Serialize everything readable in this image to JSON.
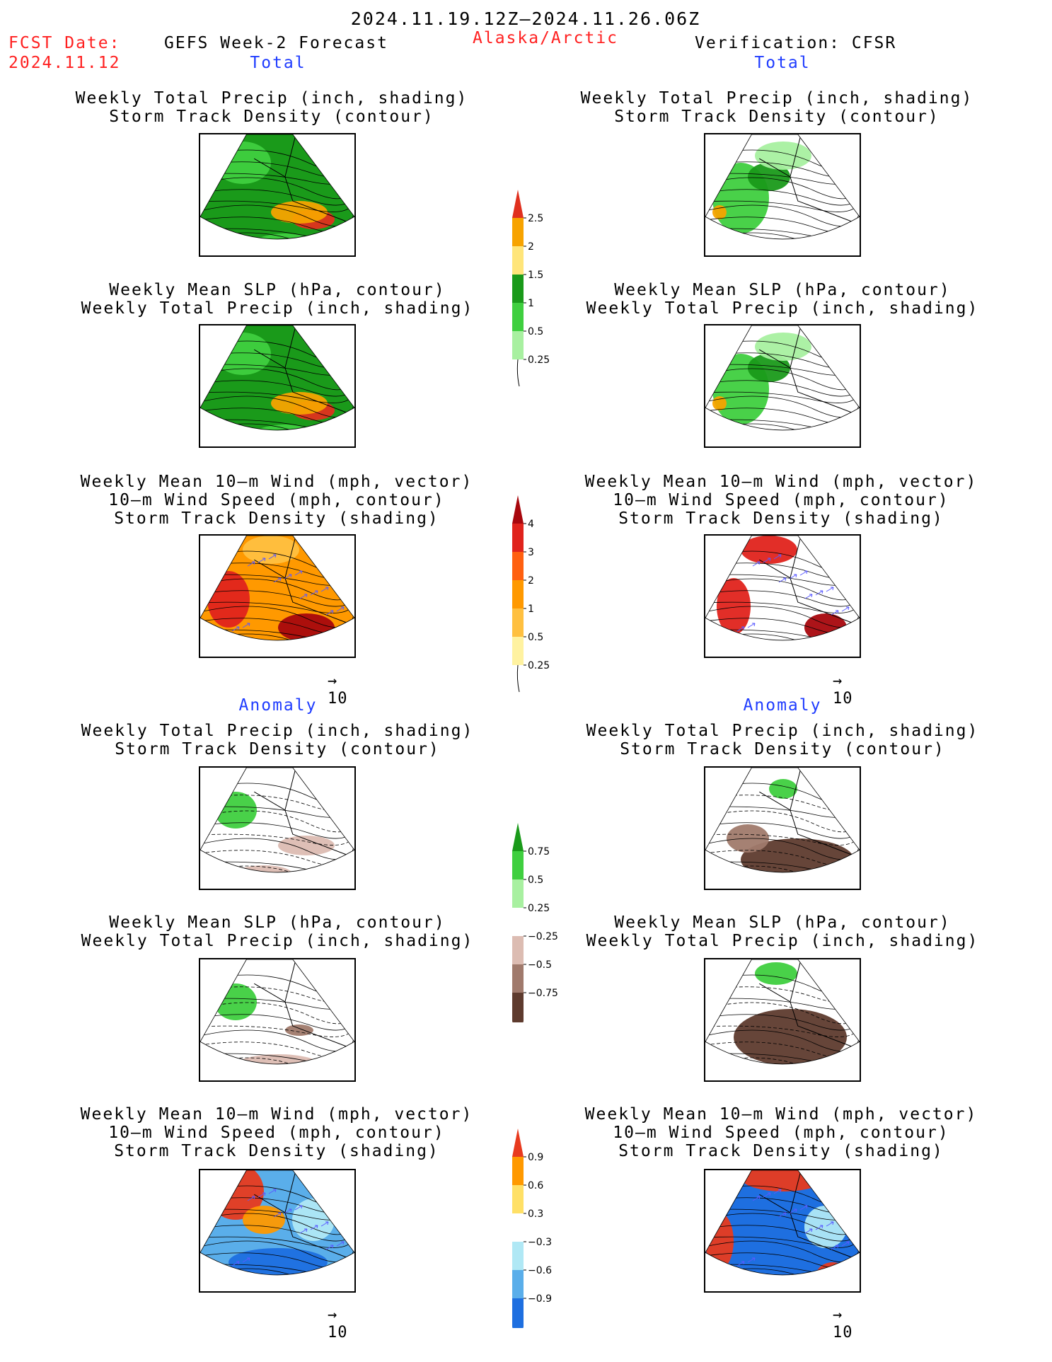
{
  "header": {
    "period": "2024.11.19.12Z—2024.11.26.06Z",
    "fcst_label": "FCST Date:",
    "fcst_date": "2024.11.12",
    "model": "GEFS Week-2 Forecast",
    "region": "Alaska/Arctic",
    "verification": "Verification: CFSR"
  },
  "sections": {
    "total_left": "Total",
    "total_right": "Total",
    "anomaly_left": "Anomaly",
    "anomaly_right": "Anomaly"
  },
  "titles": {
    "precip_track": "Weekly Total Precip (inch, shading)\nStorm Track Density (contour)",
    "slp_precip": "Weekly Mean SLP (hPa, contour)\nWeekly Total Precip (inch, shading)",
    "wind_track": "Weekly Mean 10—m Wind (mph, vector)\n10—m Wind Speed (mph, contour)\nStorm Track Density (shading)"
  },
  "reference_vector": "10",
  "chart_data": [
    {
      "type": "heatmap",
      "name": "forecast-total-precip-track",
      "colorbar": "precip"
    },
    {
      "type": "heatmap",
      "name": "verification-total-precip-track",
      "colorbar": "precip"
    },
    {
      "type": "heatmap",
      "name": "forecast-total-slp-precip",
      "colorbar": "precip"
    },
    {
      "type": "heatmap",
      "name": "verification-total-slp-precip",
      "colorbar": "precip"
    },
    {
      "type": "heatmap",
      "name": "forecast-total-wind-track",
      "colorbar": "track"
    },
    {
      "type": "heatmap",
      "name": "verification-total-wind-track",
      "colorbar": "track"
    },
    {
      "type": "heatmap",
      "name": "forecast-anomaly-precip-track",
      "colorbar": "precip_anom"
    },
    {
      "type": "heatmap",
      "name": "verification-anomaly-precip-track",
      "colorbar": "precip_anom"
    },
    {
      "type": "heatmap",
      "name": "forecast-anomaly-slp-precip",
      "colorbar": "precip_anom"
    },
    {
      "type": "heatmap",
      "name": "verification-anomaly-slp-precip",
      "colorbar": "precip_anom"
    },
    {
      "type": "heatmap",
      "name": "forecast-anomaly-wind-track",
      "colorbar": "track_anom"
    },
    {
      "type": "heatmap",
      "name": "verification-anomaly-wind-track",
      "colorbar": "track_anom"
    }
  ],
  "colorbars": {
    "precip": {
      "ticks": [
        "2.5",
        "2",
        "1.5",
        "1",
        "0.5",
        "0.25"
      ],
      "colors": [
        "#e0301e",
        "#f7a300",
        "#ffe57a",
        "#1a9a1a",
        "#3fcf3f",
        "#a8f0a0"
      ]
    },
    "track": {
      "ticks": [
        "4",
        "3",
        "2",
        "1",
        "0.5",
        "0.25"
      ],
      "colors": [
        "#a8070d",
        "#e0231c",
        "#ff6010",
        "#ff9900",
        "#ffc040",
        "#fff2a0"
      ]
    },
    "precip_anom": {
      "ticks": [
        "0.75",
        "0.5",
        "0.25",
        "−0.25",
        "−0.5",
        "−0.75"
      ],
      "colors": [
        "#1a9a1a",
        "#3fcf3f",
        "#a8f0a0",
        "#ffffff",
        "#dcbcb2",
        "#a07a6c",
        "#5e3b2e"
      ]
    },
    "track_anom": {
      "ticks": [
        "0.9",
        "0.6",
        "0.3",
        "−0.3",
        "−0.6",
        "−0.9"
      ],
      "colors": [
        "#e83a1e",
        "#ff9900",
        "#ffe066",
        "#ffffff",
        "#b0e8f5",
        "#5aaeea",
        "#1e6fe0"
      ]
    }
  }
}
